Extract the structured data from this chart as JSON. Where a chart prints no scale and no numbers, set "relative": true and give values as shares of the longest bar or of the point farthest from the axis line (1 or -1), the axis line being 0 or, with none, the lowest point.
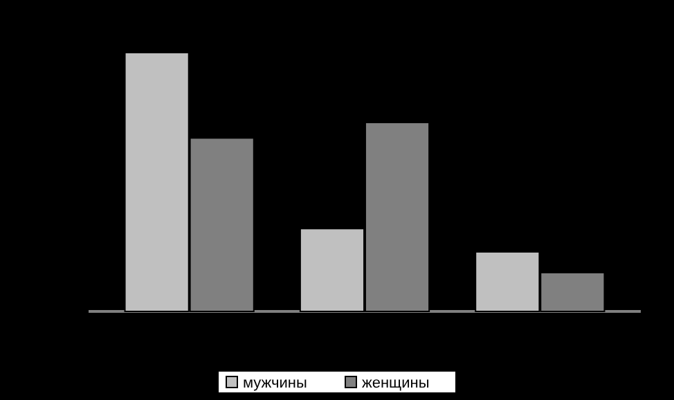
{
  "chart_data": {
    "type": "bar",
    "relative": true,
    "categories": [
      null,
      null,
      null
    ],
    "series": [
      {
        "name": "мужчины",
        "color": "#c0c0c0",
        "values": [
          1,
          0.32,
          0.23
        ]
      },
      {
        "name": "женщины",
        "color": "#808080",
        "values": [
          0.67,
          0.73,
          0.15
        ]
      }
    ],
    "legend": "bottom"
  }
}
